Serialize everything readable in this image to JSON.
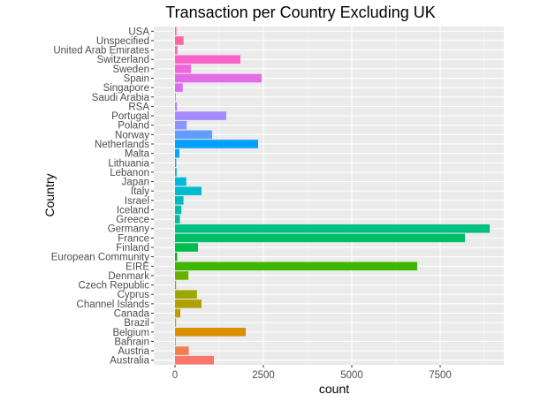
{
  "chart_data": {
    "type": "bar",
    "orientation": "horizontal",
    "title": "Transaction per Country Excluding UK",
    "xlabel": "count",
    "ylabel": "Country",
    "xlim": [
      -600,
      9300
    ],
    "xticks": [
      0,
      2500,
      5000,
      7500
    ],
    "xtick_labels": [
      "0",
      "2500",
      "5000",
      "7500"
    ],
    "grid": true,
    "legend": "none",
    "categories": [
      "Australia",
      "Austria",
      "Bahrain",
      "Belgium",
      "Brazil",
      "Canada",
      "Channel Islands",
      "Cyprus",
      "Czech Republic",
      "Denmark",
      "EIRE",
      "European Community",
      "Finland",
      "France",
      "Germany",
      "Greece",
      "Iceland",
      "Israel",
      "Italy",
      "Japan",
      "Lebanon",
      "Lithuania",
      "Malta",
      "Netherlands",
      "Norway",
      "Poland",
      "Portugal",
      "RSA",
      "Saudi Arabia",
      "Singapore",
      "Spain",
      "Sweden",
      "Switzerland",
      "United Arab Emirates",
      "Unspecified",
      "USA"
    ],
    "values": [
      1100,
      390,
      15,
      2000,
      30,
      150,
      750,
      620,
      30,
      380,
      6850,
      60,
      650,
      8200,
      8900,
      140,
      180,
      240,
      750,
      320,
      45,
      35,
      125,
      2350,
      1050,
      330,
      1450,
      55,
      10,
      220,
      2450,
      450,
      1850,
      65,
      240,
      40
    ],
    "colors": [
      "#F8766D",
      "#F17E4F",
      "#E7861B",
      "#DB8E00",
      "#CF9400",
      "#C09B00",
      "#AFA100",
      "#9CA700",
      "#85AD00",
      "#68B100",
      "#3DB600",
      "#00B81F",
      "#00BB4E",
      "#00BD69",
      "#00C082",
      "#00C097",
      "#00BFAA",
      "#00BDBB",
      "#00BBCB",
      "#00B8D9",
      "#00B3E5",
      "#00AEF0",
      "#00A7FA",
      "#00A0FF",
      "#619CFF",
      "#8C94FF",
      "#A58AFF",
      "#BA81FF",
      "#CB77FB",
      "#DA6FF2",
      "#E56AE7",
      "#EF67D8",
      "#F664C8",
      "#FA63B6",
      "#FD64A2",
      "#FC6A8D"
    ]
  }
}
